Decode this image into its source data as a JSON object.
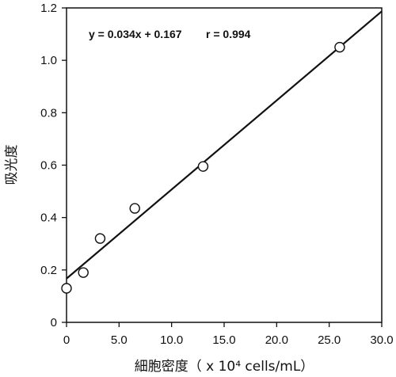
{
  "chart_data": {
    "type": "scatter",
    "xlabel": "細胞密度（ x 10⁴ cells/mL）",
    "ylabel": "吸光度",
    "xlim": [
      0,
      30
    ],
    "ylim": [
      0,
      1.2
    ],
    "x_ticks": [
      "0",
      "5.0",
      "10.0",
      "15.0",
      "20.0",
      "25.0",
      "30.0"
    ],
    "y_ticks": [
      "0",
      "0.2",
      "0.4",
      "0.6",
      "0.8",
      "1.0",
      "1.2"
    ],
    "x_tick_values": [
      0,
      5,
      10,
      15,
      20,
      25,
      30
    ],
    "y_tick_values": [
      0,
      0.2,
      0.4,
      0.6,
      0.8,
      1.0,
      1.2
    ],
    "grid": false,
    "series": [
      {
        "x": [
          0,
          1.6,
          3.2,
          6.5,
          13.0,
          26.0
        ],
        "y": [
          0.13,
          0.19,
          0.32,
          0.435,
          0.595,
          1.05
        ]
      }
    ],
    "fit_line": {
      "slope": 0.034,
      "intercept": 0.167
    },
    "annotations": {
      "equation": "y = 0.034x + 0.167",
      "r": "r = 0.994"
    }
  }
}
